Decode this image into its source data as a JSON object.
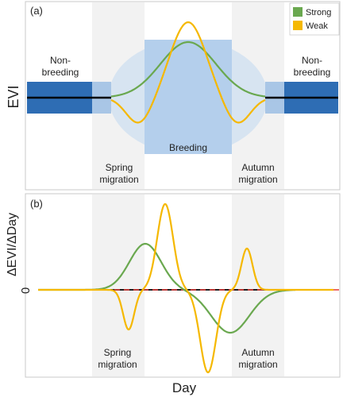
{
  "panel_a": {
    "tag": "(a)",
    "ylabel": "EVI",
    "legend": [
      {
        "label": "Strong",
        "color": "#6aa84f"
      },
      {
        "label": "Weak",
        "color": "#f5b800"
      }
    ],
    "nonbreeding_left": [
      "Non-",
      "breeding"
    ],
    "nonbreeding_right": [
      "Non-",
      "breeding"
    ],
    "breeding": "Breeding",
    "spring_migration": [
      "Spring",
      "migration"
    ],
    "autumn_migration": [
      "Autumn",
      "migration"
    ]
  },
  "panel_b": {
    "tag": "(b)",
    "ylabel": "ΔEVI/ΔDay",
    "zero": "0",
    "spring_migration": [
      "Spring",
      "migration"
    ],
    "autumn_migration": [
      "Autumn",
      "migration"
    ]
  },
  "xlabel": "Day",
  "colors": {
    "strong": "#6aa84f",
    "weak": "#f5b800",
    "dark_band": "#2e6db4",
    "light_band": "#a9c6e6",
    "ellipse": "#d7e4f1",
    "breeding_rect": "#b4cfec",
    "migration_shade": "#f2f2f2",
    "zero_line": "#e53935"
  }
}
